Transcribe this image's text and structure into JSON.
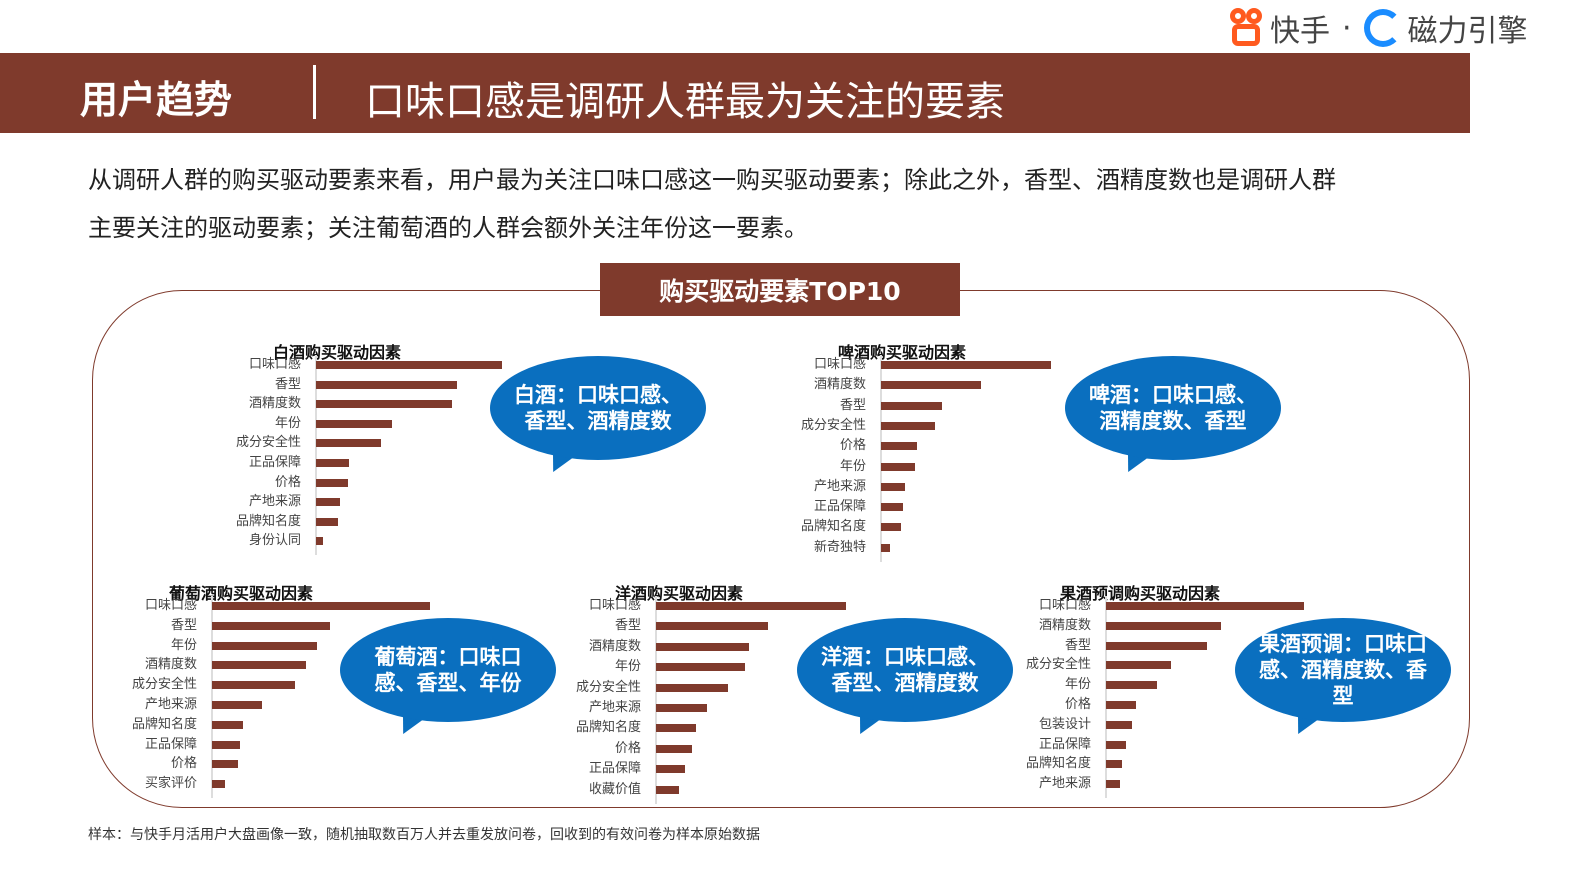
{
  "logo": {
    "brand1": "快手",
    "sep": "·",
    "brand2": "磁力引擎"
  },
  "header": {
    "section": "用户趋势",
    "title": "口味口感是调研人群最为关注的要素"
  },
  "intro": [
    "从调研人群的购买驱动要素来看，用户最为关注口味口感这一购买驱动要素；除此之外，香型、酒精度数也是调研人群",
    "主要关注的驱动要素；关注葡萄酒的人群会额外关注年份这一要素。"
  ],
  "box_title": "购买驱动要素TOP10",
  "colors": {
    "bar": "#7f3a2c",
    "bubble": "#0a6fbf",
    "header": "#7f3a2c"
  },
  "chart_data": [
    {
      "type": "bar",
      "orientation": "horizontal",
      "title": "白酒购买驱动因素",
      "categories": [
        "口味口感",
        "香型",
        "酒精度数",
        "年份",
        "成分安全性",
        "正品保障",
        "价格",
        "产地来源",
        "品牌知名度",
        "身份认同"
      ],
      "values": [
        100,
        76,
        73,
        41,
        35,
        18,
        17,
        13,
        12,
        4
      ],
      "callout": "白酒：口味口感、香型、酒精度数"
    },
    {
      "type": "bar",
      "orientation": "horizontal",
      "title": "啤酒购买驱动因素",
      "categories": [
        "口味口感",
        "酒精度数",
        "香型",
        "成分安全性",
        "价格",
        "年份",
        "产地来源",
        "正品保障",
        "品牌知名度",
        "新奇独特"
      ],
      "values": [
        100,
        59,
        36,
        32,
        21,
        20,
        14,
        13,
        12,
        5
      ],
      "callout": "啤酒：口味口感、酒精度数、香型"
    },
    {
      "type": "bar",
      "orientation": "horizontal",
      "title": "葡萄酒购买驱动因素",
      "categories": [
        "口味口感",
        "香型",
        "年份",
        "酒精度数",
        "成分安全性",
        "产地来源",
        "品牌知名度",
        "正品保障",
        "价格",
        "买家评价"
      ],
      "values": [
        100,
        54,
        48,
        43,
        38,
        23,
        14,
        13,
        12,
        6
      ],
      "callout": "葡萄酒：口味口感、香型、年份"
    },
    {
      "type": "bar",
      "orientation": "horizontal",
      "title": "洋酒购买驱动因素",
      "categories": [
        "口味口感",
        "香型",
        "酒精度数",
        "年份",
        "成分安全性",
        "产地来源",
        "品牌知名度",
        "价格",
        "正品保障",
        "收藏价值"
      ],
      "values": [
        100,
        59,
        49,
        47,
        38,
        27,
        21,
        19,
        15,
        12
      ],
      "callout": "洋酒：口味口感、香型、酒精度数"
    },
    {
      "type": "bar",
      "orientation": "horizontal",
      "title": "果酒预调购买驱动因素",
      "categories": [
        "口味口感",
        "酒精度数",
        "香型",
        "成分安全性",
        "年份",
        "价格",
        "包装设计",
        "正品保障",
        "品牌知名度",
        "产地来源"
      ],
      "values": [
        100,
        58,
        51,
        33,
        26,
        15,
        13,
        10,
        8,
        7
      ],
      "callout": "果酒预调：口味口感、酒精度数、香型"
    }
  ],
  "footnote": "样本：与快手月活用户大盘画像一致，随机抽取数百万人并去重发放问卷，回收到的有效问卷为样本原始数据"
}
